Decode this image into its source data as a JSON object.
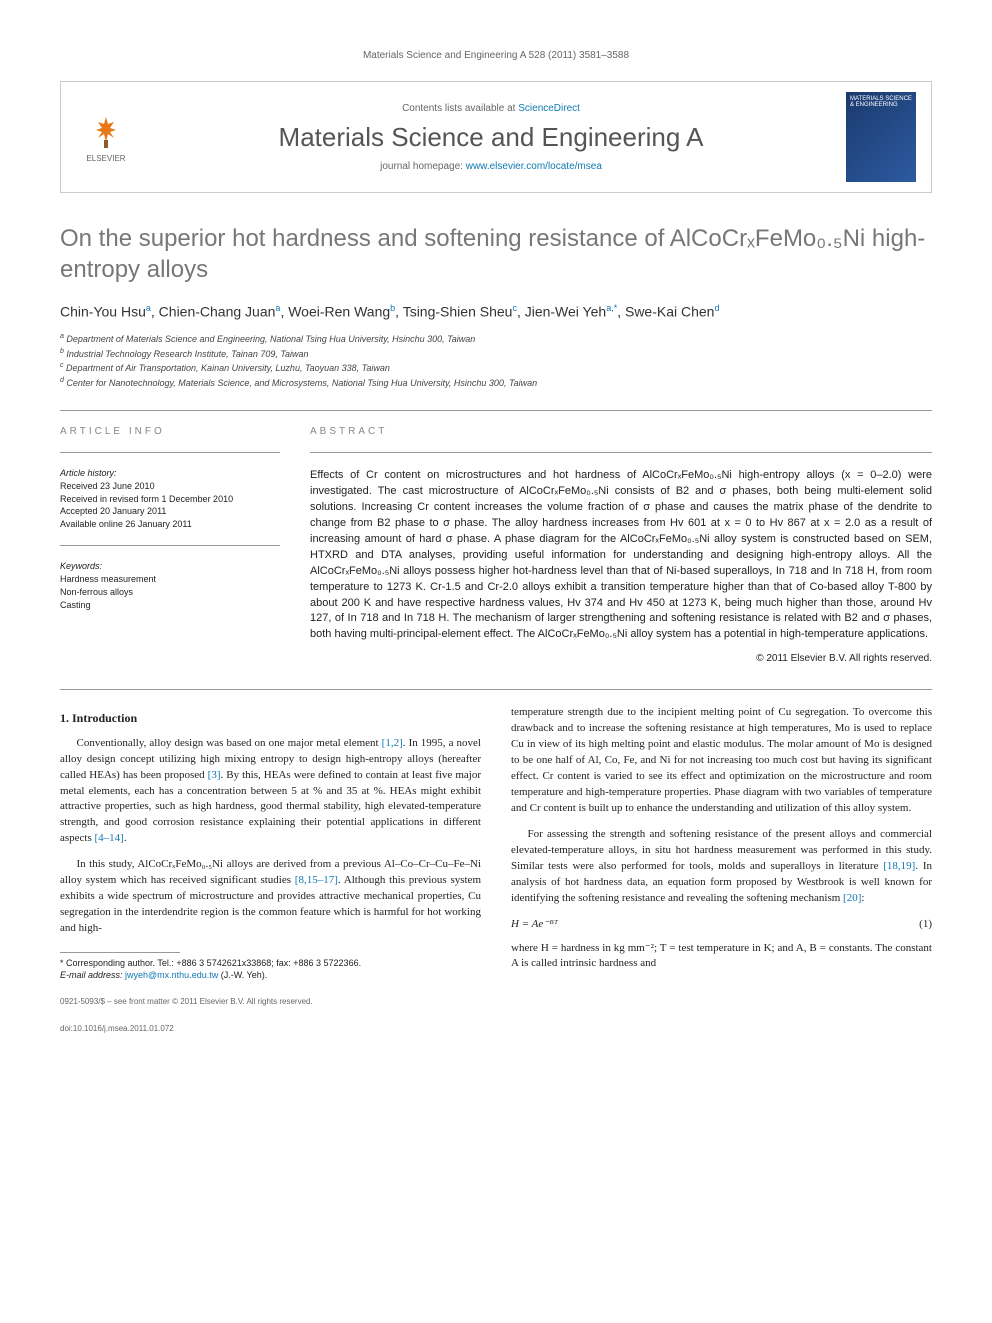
{
  "header": {
    "citation": "Materials Science and Engineering A 528 (2011) 3581–3588"
  },
  "journal_box": {
    "contents_text": "Contents lists available at ",
    "sd_text": "ScienceDirect",
    "journal_name": "Materials Science and Engineering A",
    "homepage_label": "journal homepage: ",
    "homepage_url": "www.elsevier.com/locate/msea",
    "elsevier_label": "ELSEVIER",
    "cover_title": "MATERIALS SCIENCE & ENGINEERING"
  },
  "title": "On the superior hot hardness and softening resistance of AlCoCrₓFeMo₀.₅Ni high-entropy alloys",
  "authors_html": "Chin-You Hsu|a|, Chien-Chang Juan|a|, Woei-Ren Wang|b|, Tsing-Shien Sheu|c|, Jien-Wei Yeh|a,*|, Swe-Kai Chen|d|",
  "affiliations": [
    {
      "sup": "a",
      "text": "Department of Materials Science and Engineering, National Tsing Hua University, Hsinchu 300, Taiwan"
    },
    {
      "sup": "b",
      "text": "Industrial Technology Research Institute, Tainan 709, Taiwan"
    },
    {
      "sup": "c",
      "text": "Department of Air Transportation, Kainan University, Luzhu, Taoyuan 338, Taiwan"
    },
    {
      "sup": "d",
      "text": "Center for Nanotechnology, Materials Science, and Microsystems, National Tsing Hua University, Hsinchu 300, Taiwan"
    }
  ],
  "article_info": {
    "heading": "ARTICLE INFO",
    "history_head": "Article history:",
    "history": [
      "Received 23 June 2010",
      "Received in revised form 1 December 2010",
      "Accepted 20 January 2011",
      "Available online 26 January 2011"
    ],
    "keywords_head": "Keywords:",
    "keywords": [
      "Hardness measurement",
      "Non-ferrous alloys",
      "Casting"
    ]
  },
  "abstract": {
    "heading": "ABSTRACT",
    "text": "Effects of Cr content on microstructures and hot hardness of AlCoCrₓFeMo₀.₅Ni high-entropy alloys (x = 0–2.0) were investigated. The cast microstructure of AlCoCrₓFeMo₀.₅Ni consists of B2 and σ phases, both being multi-element solid solutions. Increasing Cr content increases the volume fraction of σ phase and causes the matrix phase of the dendrite to change from B2 phase to σ phase. The alloy hardness increases from Hv 601 at x = 0 to Hv 867 at x = 2.0 as a result of increasing amount of hard σ phase. A phase diagram for the AlCoCrₓFeMo₀.₅Ni alloy system is constructed based on SEM, HTXRD and DTA analyses, providing useful information for understanding and designing high-entropy alloys. All the AlCoCrₓFeMo₀.₅Ni alloys possess higher hot-hardness level than that of Ni-based superalloys, In 718 and In 718 H, from room temperature to 1273 K. Cr-1.5 and Cr-2.0 alloys exhibit a transition temperature higher than that of Co-based alloy T-800 by about 200 K and have respective hardness values, Hv 374 and Hv 450 at 1273 K, being much higher than those, around Hv 127, of In 718 and In 718 H. The mechanism of larger strengthening and softening resistance is related with B2 and σ phases, both having multi-principal-element effect. The AlCoCrₓFeMo₀.₅Ni alloy system has a potential in high-temperature applications.",
    "copyright": "© 2011 Elsevier B.V. All rights reserved."
  },
  "body": {
    "section1_heading": "1. Introduction",
    "para1": "Conventionally, alloy design was based on one major metal element [1,2]. In 1995, a novel alloy design concept utilizing high mixing entropy to design high-entropy alloys (hereafter called HEAs) has been proposed [3]. By this, HEAs were defined to contain at least five major metal elements, each has a concentration between 5 at % and 35 at %. HEAs might exhibit attractive properties, such as high hardness, good thermal stability, high elevated-temperature strength, and good corrosion resistance explaining their potential applications in different aspects [4–14].",
    "para2": "In this study, AlCoCrₓFeMo₀.₅Ni alloys are derived from a previous Al–Co–Cr–Cu–Fe–Ni alloy system which has received significant studies [8,15–17]. Although this previous system exhibits a wide spectrum of microstructure and provides attractive mechanical properties, Cu segregation in the interdendrite region is the common feature which is harmful for hot working and high-",
    "para3_cont": "temperature strength due to the incipient melting point of Cu segregation. To overcome this drawback and to increase the softening resistance at high temperatures, Mo is used to replace Cu in view of its high melting point and elastic modulus. The molar amount of Mo is designed to be one half of Al, Co, Fe, and Ni for not increasing too much cost but having its significant effect. Cr content is varied to see its effect and optimization on the microstructure and room temperature and high-temperature properties. Phase diagram with two variables of temperature and Cr content is built up to enhance the understanding and utilization of this alloy system.",
    "para4": "For assessing the strength and softening resistance of the present alloys and commercial elevated-temperature alloys, in situ hot hardness measurement was performed in this study. Similar tests were also performed for tools, molds and superalloys in literature [18,19]. In analysis of hot hardness data, an equation form proposed by Westbrook is well known for identifying the softening resistance and revealing the softening mechanism [20]:",
    "equation": "H = Ae⁻ᴮᵀ",
    "eq_num": "(1)",
    "para5": "where H = hardness in kg mm⁻²; T = test temperature in K; and A, B = constants. The constant A is called intrinsic hardness and"
  },
  "footnote": {
    "corr_label": "* Corresponding author. Tel.: +886 3 5742621x33868; fax: +886 3 5722366.",
    "email_label": "E-mail address: ",
    "email": "jwyeh@mx.nthu.edu.tw",
    "email_name": " (J.-W. Yeh)."
  },
  "footer": {
    "line1": "0921-5093/$ – see front matter © 2011 Elsevier B.V. All rights reserved.",
    "line2": "doi:10.1016/j.msea.2011.01.072"
  },
  "colors": {
    "link": "#1178b3",
    "title_gray": "#777777",
    "text": "#222222",
    "muted": "#666666"
  }
}
